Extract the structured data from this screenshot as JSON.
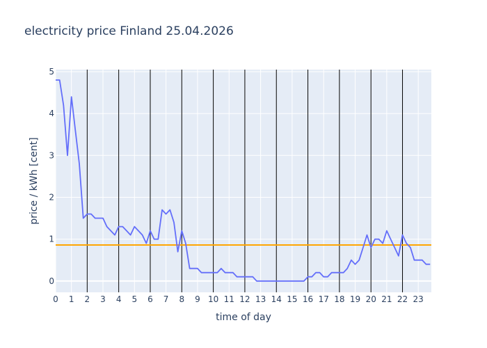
{
  "chart_data": {
    "type": "line",
    "title": "electricity price Finland 25.04.2026",
    "xlabel": "time of day",
    "ylabel": "price / kWh [cent]",
    "xlim": [
      0,
      23.83
    ],
    "ylim": [
      -0.27,
      5.05
    ],
    "x_ticks": [
      0,
      1,
      2,
      3,
      4,
      5,
      6,
      7,
      8,
      9,
      10,
      11,
      12,
      13,
      14,
      15,
      16,
      17,
      18,
      19,
      20,
      21,
      22,
      23
    ],
    "y_ticks": [
      0,
      1,
      2,
      3,
      4,
      5
    ],
    "vertical_markers": [
      2,
      4,
      6,
      8,
      10,
      12,
      14,
      16,
      18,
      20,
      22
    ],
    "average_line": {
      "value": 0.86,
      "color": "#ffa500"
    },
    "series": [
      {
        "color": "#636efa",
        "x": [
          0,
          0.25,
          0.5,
          0.75,
          1,
          1.25,
          1.5,
          1.75,
          2,
          2.25,
          2.5,
          2.75,
          3,
          3.25,
          3.5,
          3.75,
          4,
          4.25,
          4.5,
          4.75,
          5,
          5.25,
          5.5,
          5.75,
          6,
          6.25,
          6.5,
          6.75,
          7,
          7.25,
          7.5,
          7.75,
          8,
          8.25,
          8.5,
          8.75,
          9,
          9.25,
          9.5,
          9.75,
          10,
          10.25,
          10.5,
          10.75,
          11,
          11.25,
          11.5,
          11.75,
          12,
          12.25,
          12.5,
          12.75,
          13,
          13.25,
          13.5,
          13.75,
          14,
          14.25,
          14.5,
          14.75,
          15,
          15.25,
          15.5,
          15.75,
          16,
          16.25,
          16.5,
          16.75,
          17,
          17.25,
          17.5,
          17.75,
          18,
          18.25,
          18.5,
          18.75,
          19,
          19.25,
          19.5,
          19.75,
          20,
          20.25,
          20.5,
          20.75,
          21,
          21.25,
          21.5,
          21.75,
          22,
          22.25,
          22.5,
          22.75,
          23,
          23.25,
          23.5,
          23.75
        ],
        "y": [
          4.8,
          4.8,
          4.2,
          3.0,
          4.4,
          3.6,
          2.8,
          1.5,
          1.6,
          1.6,
          1.5,
          1.5,
          1.5,
          1.3,
          1.2,
          1.1,
          1.3,
          1.3,
          1.2,
          1.1,
          1.3,
          1.2,
          1.1,
          0.9,
          1.2,
          1.0,
          1.0,
          1.7,
          1.6,
          1.7,
          1.4,
          0.7,
          1.2,
          0.9,
          0.3,
          0.3,
          0.3,
          0.2,
          0.2,
          0.2,
          0.2,
          0.2,
          0.3,
          0.2,
          0.2,
          0.2,
          0.1,
          0.1,
          0.1,
          0.1,
          0.1,
          0.0,
          0.0,
          0.0,
          0.0,
          0.0,
          0.0,
          0.0,
          0.0,
          0.0,
          0.0,
          0.0,
          0.0,
          0.0,
          0.1,
          0.1,
          0.2,
          0.2,
          0.1,
          0.1,
          0.2,
          0.2,
          0.2,
          0.2,
          0.3,
          0.5,
          0.4,
          0.5,
          0.8,
          1.1,
          0.8,
          1.0,
          1.0,
          0.9,
          1.2,
          1.0,
          0.8,
          0.6,
          1.1,
          0.9,
          0.8,
          0.5,
          0.5,
          0.5,
          0.4,
          0.4
        ]
      }
    ]
  }
}
